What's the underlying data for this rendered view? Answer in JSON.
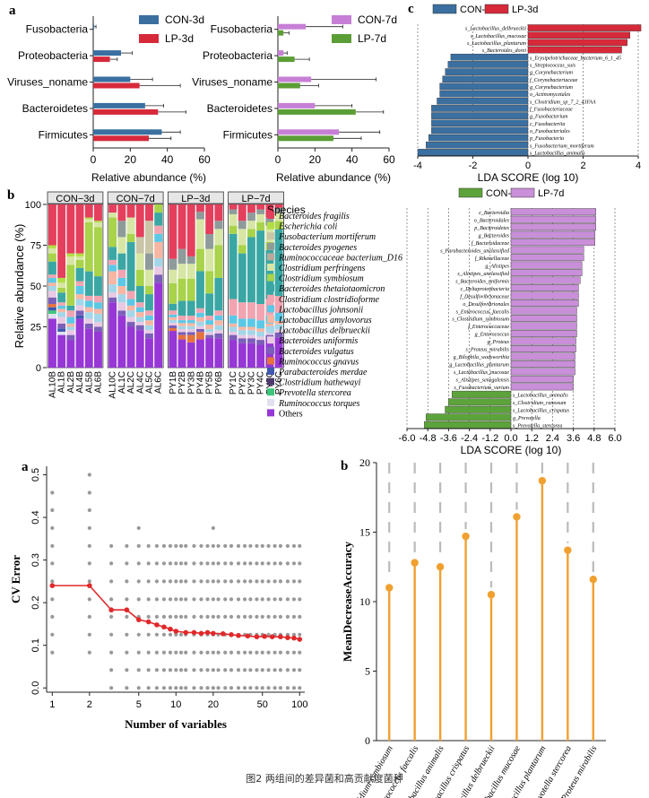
{
  "caption": "图2 两组间的差异菌和高贡献度菌种",
  "colors": {
    "con3": "#3a6fa0",
    "lp3": "#d6293a",
    "con7": "#c98fd8",
    "lp7": "#5da33b",
    "con7bar": "#c77fd6",
    "lp7bar": "#5b9e35",
    "cv": "#e0282a",
    "dot": "#999999",
    "lollipop": "#f0a030",
    "grid": "#bbbbbb"
  },
  "chart_data": [
    {
      "id": "a1",
      "type": "bar",
      "panel_label": "a",
      "categories": [
        "Fusobacteria",
        "Proteobacteria",
        "Viruses_noname",
        "Bacteroidetes",
        "Firmicutes"
      ],
      "series": [
        {
          "name": "CON-3d",
          "values": [
            0.5,
            15,
            20,
            28,
            37
          ],
          "err": [
            1,
            6,
            12,
            10,
            10
          ]
        },
        {
          "name": "LP-3d",
          "values": [
            0,
            9,
            25,
            35,
            30
          ],
          "err": [
            0,
            4,
            22,
            15,
            12
          ]
        }
      ],
      "xlabel": "Relative abundance (%)",
      "xlim": [
        0,
        60
      ],
      "ticks": [
        0,
        20,
        40,
        60
      ]
    },
    {
      "id": "a2",
      "type": "bar",
      "categories": [
        "Fusobacteria",
        "Proteobacteria",
        "Viruses_noname",
        "Bacteroidetes",
        "Firmicutes"
      ],
      "series": [
        {
          "name": "CON-7d",
          "values": [
            15,
            3,
            18,
            20,
            33
          ],
          "err": [
            20,
            2,
            35,
            20,
            22
          ]
        },
        {
          "name": "LP-7d",
          "values": [
            3,
            9,
            12,
            42,
            30
          ],
          "err": [
            3,
            8,
            10,
            15,
            15
          ]
        }
      ],
      "xlabel": "Relative abundance (%)",
      "xlim": [
        0,
        60
      ],
      "ticks": [
        0,
        20,
        40,
        60
      ]
    },
    {
      "id": "b1",
      "type": "bar",
      "panel_label": "b",
      "stacked": true,
      "ylabel": "Relative abundance (%)",
      "ylim": [
        0,
        100
      ],
      "yticks": [
        0,
        25,
        50,
        75,
        100
      ],
      "groups": [
        {
          "name": "CON−3d",
          "samples": [
            "AL10B",
            "AL1B",
            "AL2B",
            "AL4B",
            "AL5B",
            "AL6B"
          ]
        },
        {
          "name": "CON−7d",
          "samples": [
            "AL10C",
            "AL1C",
            "AL2C",
            "AL4C",
            "AL5C",
            "AL6C"
          ]
        },
        {
          "name": "LP−3d",
          "samples": [
            "PY1B",
            "PY2B",
            "PY3B",
            "PY4B",
            "PY5B",
            "PY6B"
          ]
        },
        {
          "name": "LP−7d",
          "samples": [
            "PY1C",
            "PY2C",
            "PY3C",
            "PY4C",
            "PY5C",
            "PY6C"
          ]
        }
      ],
      "legend_title": "Species",
      "species": [
        {
          "name": "Bacteroides fragilis",
          "color": "#e43f5c"
        },
        {
          "name": "Escherichia coli",
          "color": "#b2de45"
        },
        {
          "name": "Fusobacterium mortiferum",
          "color": "#cbc5a8"
        },
        {
          "name": "Bacteroides pyogenes",
          "color": "#8e9b9a"
        },
        {
          "name": "Ruminococcaceae bacterium_D16",
          "color": "#b9a99c"
        },
        {
          "name": "Clostridium perfringens",
          "color": "#d7e6a5"
        },
        {
          "name": "Clostridium symbiosum",
          "color": "#a8d34a"
        },
        {
          "name": "Bacteroides thetaiotaomicron",
          "color": "#3aa7a4"
        },
        {
          "name": "Clostridium clostridioforme",
          "color": "#f2a4b1"
        },
        {
          "name": "Lactobacillus johnsonii",
          "color": "#5bc8e6"
        },
        {
          "name": "Lactobacillus amylovorus",
          "color": "#f7b6a3"
        },
        {
          "name": "Lactobacillus delbrueckii",
          "color": "#a3d6e8"
        },
        {
          "name": "Bacteroides uniformis",
          "color": "#e9c9e4"
        },
        {
          "name": "Bacteroides vulgatus",
          "color": "#7b5fb8"
        },
        {
          "name": "Ruminococcus gnavus",
          "color": "#e6733e"
        },
        {
          "name": "Parabacteroides merdae",
          "color": "#3f58b0"
        },
        {
          "name": "Clostridium hathewayi",
          "color": "#4e3a6e"
        },
        {
          "name": "Prevotella stercorea",
          "color": "#3bc67a"
        },
        {
          "name": "Ruminococcus torques",
          "color": "#e0e0ee"
        },
        {
          "name": "Others",
          "color": "#9637d6"
        }
      ],
      "stack_values": [
        [
          25,
          2,
          0,
          0,
          0,
          3,
          5,
          8,
          2,
          3,
          2,
          3,
          4,
          4,
          2,
          2,
          0,
          2,
          3,
          30
        ],
        [
          45,
          3,
          0,
          0,
          0,
          3,
          3,
          6,
          2,
          2,
          2,
          3,
          4,
          3,
          0,
          2,
          0,
          0,
          2,
          20
        ],
        [
          30,
          2,
          0,
          0,
          0,
          5,
          25,
          3,
          4,
          4,
          2,
          2,
          3,
          3,
          0,
          0,
          0,
          0,
          0,
          17
        ],
        [
          30,
          2,
          0,
          0,
          0,
          2,
          5,
          8,
          3,
          5,
          3,
          4,
          3,
          3,
          0,
          2,
          0,
          0,
          0,
          30
        ],
        [
          8,
          1,
          0,
          0,
          0,
          2,
          30,
          15,
          3,
          4,
          3,
          4,
          3,
          3,
          0,
          0,
          0,
          0,
          0,
          24
        ],
        [
          10,
          1,
          0,
          0,
          0,
          3,
          30,
          12,
          4,
          4,
          3,
          5,
          3,
          3,
          0,
          0,
          0,
          0,
          0,
          22
        ],
        [
          5,
          0,
          0,
          0,
          0,
          3,
          18,
          8,
          3,
          4,
          8,
          5,
          3,
          3,
          0,
          0,
          0,
          0,
          0,
          40
        ],
        [
          10,
          0,
          0,
          10,
          0,
          10,
          0,
          10,
          5,
          5,
          5,
          5,
          5,
          3,
          0,
          0,
          0,
          0,
          0,
          32
        ],
        [
          8,
          0,
          0,
          0,
          0,
          10,
          5,
          30,
          5,
          4,
          3,
          4,
          3,
          3,
          0,
          0,
          0,
          0,
          0,
          25
        ],
        [
          20,
          0,
          10,
          0,
          0,
          10,
          10,
          10,
          3,
          3,
          3,
          3,
          2,
          3,
          0,
          0,
          0,
          0,
          0,
          23
        ],
        [
          10,
          0,
          20,
          10,
          0,
          10,
          5,
          10,
          3,
          3,
          3,
          3,
          2,
          3,
          0,
          0,
          0,
          0,
          0,
          18
        ],
        [
          0,
          0,
          0,
          0,
          0,
          0,
          5,
          8,
          5,
          5,
          10,
          5,
          5,
          5,
          0,
          0,
          0,
          0,
          0,
          52
        ],
        [
          40,
          0,
          0,
          8,
          0,
          10,
          15,
          5,
          3,
          2,
          2,
          2,
          2,
          2,
          2,
          0,
          0,
          0,
          0,
          27
        ],
        [
          30,
          0,
          0,
          10,
          0,
          10,
          15,
          10,
          3,
          2,
          2,
          2,
          2,
          2,
          3,
          0,
          0,
          0,
          0,
          19
        ],
        [
          35,
          0,
          0,
          5,
          0,
          10,
          15,
          10,
          3,
          2,
          2,
          2,
          2,
          2,
          5,
          0,
          0,
          0,
          0,
          17
        ],
        [
          5,
          0,
          0,
          5,
          0,
          20,
          15,
          25,
          3,
          3,
          3,
          3,
          2,
          2,
          5,
          0,
          0,
          0,
          0,
          19
        ],
        [
          20,
          0,
          0,
          10,
          0,
          15,
          15,
          15,
          3,
          3,
          3,
          2,
          2,
          2,
          0,
          0,
          0,
          0,
          0,
          20
        ],
        [
          10,
          0,
          0,
          5,
          0,
          10,
          20,
          20,
          3,
          3,
          3,
          3,
          2,
          3,
          0,
          0,
          0,
          0,
          0,
          18
        ],
        [
          3,
          0,
          0,
          3,
          0,
          7,
          5,
          40,
          10,
          5,
          2,
          3,
          2,
          3,
          0,
          0,
          0,
          0,
          0,
          17
        ],
        [
          10,
          0,
          0,
          5,
          0,
          10,
          5,
          30,
          10,
          5,
          2,
          3,
          2,
          3,
          0,
          0,
          0,
          0,
          0,
          15
        ],
        [
          5,
          0,
          0,
          5,
          0,
          5,
          5,
          40,
          10,
          5,
          2,
          3,
          2,
          3,
          0,
          0,
          0,
          0,
          0,
          15
        ],
        [
          3,
          0,
          0,
          3,
          0,
          5,
          5,
          45,
          10,
          5,
          2,
          3,
          2,
          3,
          0,
          0,
          0,
          0,
          0,
          14
        ],
        [
          8,
          0,
          0,
          5,
          0,
          10,
          5,
          30,
          10,
          5,
          2,
          3,
          2,
          3,
          0,
          0,
          0,
          0,
          0,
          17
        ],
        [
          2,
          0,
          0,
          3,
          0,
          5,
          5,
          40,
          10,
          5,
          2,
          3,
          2,
          3,
          0,
          0,
          0,
          0,
          0,
          18
        ]
      ]
    },
    {
      "id": "c1",
      "type": "bar",
      "panel_label": "c",
      "orientation": "horizontal",
      "legend": [
        "CON-3d",
        "LP-3d"
      ],
      "xlabel": "LDA SCORE (log 10)",
      "xlim": [
        -4,
        4
      ],
      "ticks": [
        -4,
        -2,
        0,
        2,
        4
      ],
      "labels": [
        "s_Lactobacillus_delbrueckii",
        "s_Lactobacillus_mucosae",
        "s_Lactobacillus_plantarum",
        "s_Bacteroides_dorei",
        "s_Erysipelotrichaceae_bacterium_6_1_45",
        "s_Streptococcus_suis",
        "g_Corynebacterium",
        "f_Corynebacteriaceae",
        "g_Corynebacterium",
        "o_Actinomycetales",
        "s_Clostridium_sp_7_2_43FAA",
        "f_Fusobacteriaceae",
        "g_Fusobacterium",
        "c_Fusobacteriia",
        "o_Fusobacteriales",
        "p_Fusobacteria",
        "s_Fusobacterium_mortiferum",
        "s_Lactobacillus_animalis"
      ],
      "values": [
        4.1,
        3.7,
        3.6,
        3.4,
        -2.8,
        -2.9,
        -3.0,
        -3.1,
        -3.2,
        -3.2,
        -3.3,
        -3.5,
        -3.5,
        -3.5,
        -3.5,
        -3.6,
        -3.7,
        -4.0
      ]
    },
    {
      "id": "c2",
      "type": "bar",
      "orientation": "horizontal",
      "legend": [
        "CON-7d",
        "LP-7d"
      ],
      "xlabel": "LDA SCORE (log 10)",
      "xlim": [
        -6,
        6
      ],
      "ticks": [
        -6.0,
        -4.8,
        -3.6,
        -2.4,
        -1.2,
        0.0,
        1.2,
        2.4,
        3.6,
        4.8,
        6.0
      ],
      "labels": [
        "c_Bacteroidia",
        "o_Bacteroidales",
        "p_Bacteroidetes",
        "g_Bacteroides",
        "f_Bacteroidaceae",
        "s_Parabacteroides_unclassified",
        "f_Rikenellaceae",
        "g_Alistipes",
        "s_Alistipes_unclassified",
        "s_Bacteroides_uniformis",
        "c_Deltaproteobacteria",
        "f_Desulfovibrionaceae",
        "o_Desulfovibrionales",
        "s_Enterococcus_faecalis",
        "s_Clostridium_symbiosum",
        "f_Enterococcaceae",
        "g_Enterococcus",
        "g_Proteus",
        "s_Proteus_mirabilis",
        "g_Bilophila_wadsworthia",
        "g_Lactobacillus_plantarum",
        "s_Lactobacillus_mucosae",
        "s_Alistipes_senegalensis",
        "s_Fusobacterium_varium",
        "s_Lactobacillus_animalis",
        "s_Clostridium_ramosum",
        "s_Lactobacillus_crispatus",
        "g_Prevotella",
        "s_Prevotella_stercorea"
      ],
      "values": [
        4.9,
        4.9,
        4.9,
        4.85,
        4.85,
        4.2,
        4.2,
        4.1,
        4.1,
        4.0,
        3.9,
        3.9,
        3.9,
        3.8,
        3.8,
        3.8,
        3.8,
        3.75,
        3.75,
        3.7,
        3.7,
        3.7,
        3.6,
        3.6,
        -3.4,
        -3.6,
        -3.8,
        -4.9,
        -5.0
      ]
    },
    {
      "id": "d1",
      "type": "line",
      "panel_label": "a",
      "xlabel": "Number of variables",
      "ylabel": "CV Error",
      "xscale": "log",
      "xlim": [
        0.9,
        110
      ],
      "ylim": [
        -0.01,
        0.52
      ],
      "xticks": [
        1,
        2,
        5,
        10,
        20,
        50,
        100
      ],
      "yticks": [
        0.0,
        0.1,
        0.2,
        0.3,
        0.4,
        0.5
      ],
      "line_x": [
        1,
        2,
        3,
        4,
        5,
        6,
        7,
        8,
        9,
        10,
        12,
        14,
        16,
        18,
        20,
        24,
        28,
        32,
        38,
        45,
        52,
        60,
        70,
        80,
        90,
        100
      ],
      "line_y": [
        0.24,
        0.24,
        0.183,
        0.183,
        0.16,
        0.155,
        0.148,
        0.143,
        0.138,
        0.133,
        0.13,
        0.13,
        0.128,
        0.13,
        0.128,
        0.127,
        0.125,
        0.123,
        0.122,
        0.12,
        0.121,
        0.12,
        0.12,
        0.118,
        0.117,
        0.114
      ],
      "point_levels": [
        0.0,
        0.042,
        0.083,
        0.125,
        0.167,
        0.208,
        0.25,
        0.292,
        0.333,
        0.375,
        0.417,
        0.458,
        0.5
      ]
    },
    {
      "id": "d2",
      "type": "scatter",
      "panel_label": "b",
      "subtype": "lollipop",
      "ylabel": "MeanDecreaseAccuracy",
      "ylim": [
        0,
        20
      ],
      "yticks": [
        0,
        5,
        10,
        15,
        20
      ],
      "categories": [
        "Clostridium symbiosum",
        "Enterococcus faecalis",
        "Lactobacillus animalis",
        "Lactobacillus crispatus",
        "Lactobacillus delbrueckii",
        "Lactobacillus mucosae",
        "Lactobacillus plantarum",
        "Prevotella stercorea",
        "Proteus mirabilis"
      ],
      "values": [
        11.0,
        12.8,
        12.5,
        14.7,
        10.5,
        16.1,
        18.7,
        13.7,
        11.6
      ]
    }
  ]
}
